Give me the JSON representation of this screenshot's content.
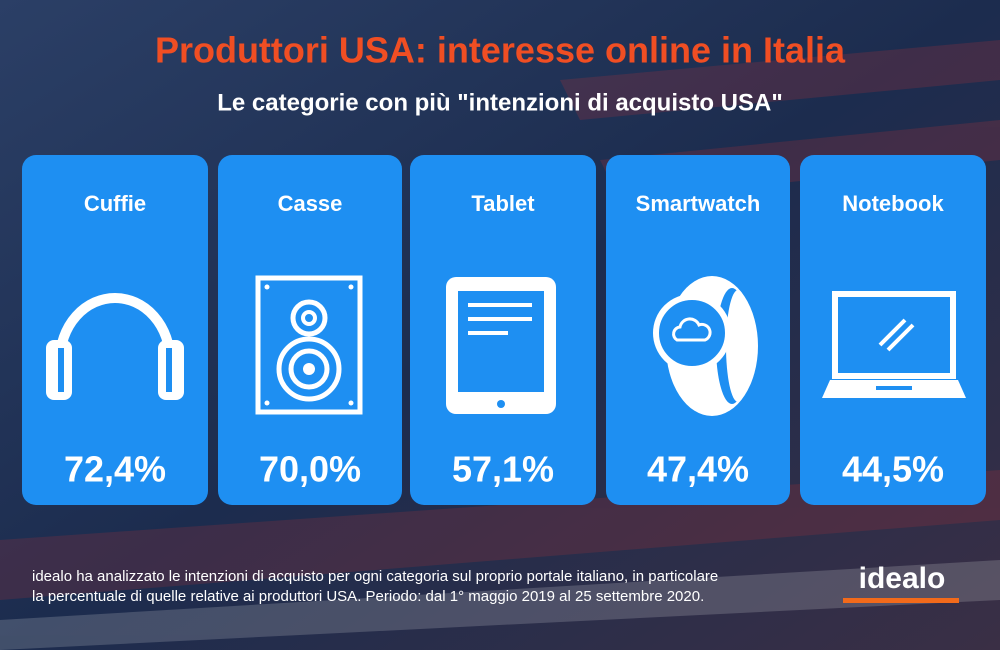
{
  "header": {
    "title": "Produttori USA: interesse online in Italia",
    "subtitle": "Le categorie con più \"intenzioni di acquisto USA\""
  },
  "cards": [
    {
      "label": "Cuffie",
      "value": "72,4%"
    },
    {
      "label": "Casse",
      "value": "70,0%"
    },
    {
      "label": "Tablet",
      "value": "57,1%"
    },
    {
      "label": "Smartwatch",
      "value": "47,4%"
    },
    {
      "label": "Notebook",
      "value": "44,5%"
    }
  ],
  "footer": {
    "lines": [
      "idealo ha analizzato le intenzioni di acquisto per ogni categoria sul proprio portale italiano, in particolare",
      "la percentuale di quelle relative ai produttori USA. Periodo: dal 1° maggio 2019 al 25 settembre 2020."
    ],
    "logo": "idealo"
  }
}
